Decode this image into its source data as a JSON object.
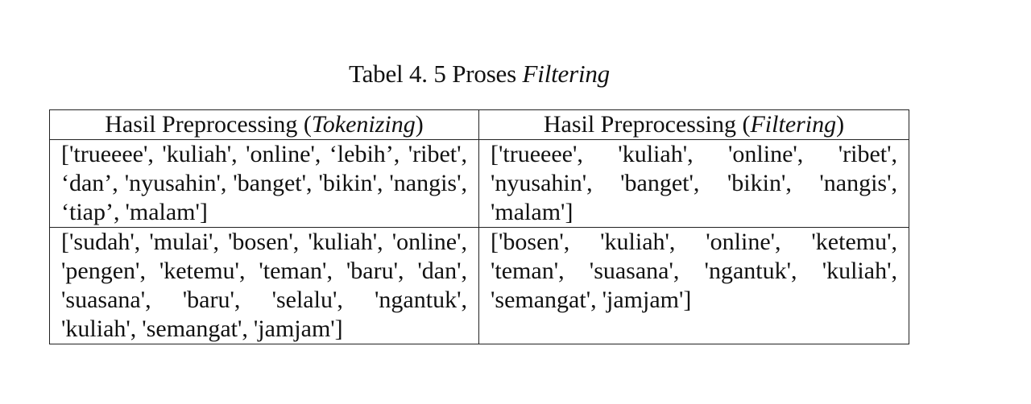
{
  "caption": {
    "prefix": "Tabel 4. 5 Proses ",
    "emphasis": "Filtering"
  },
  "table": {
    "headers": [
      {
        "prefix": "Hasil Preprocessing (",
        "emphasis": "Tokenizing",
        "suffix": ")"
      },
      {
        "prefix": "Hasil Preprocessing (",
        "emphasis": "Filtering",
        "suffix": ")"
      }
    ],
    "rows": [
      {
        "tokenizing": "['trueeee', 'kuliah', 'online', ‘lebih’, 'ribet', ‘dan’, 'nyusahin', 'banget', 'bikin', 'nangis', ‘tiap’, 'malam']",
        "filtering": "['trueeee', 'kuliah', 'online', 'ribet', 'nyusahin', 'banget', 'bikin', 'nangis', 'malam']"
      },
      {
        "tokenizing": "['sudah', 'mulai', 'bosen', 'kuliah', 'online', 'pengen', 'ketemu', 'teman', 'baru', 'dan', 'suasana', 'baru', 'selalu', 'ngantuk', 'kuliah', 'semangat', 'jamjam']",
        "filtering": "['bosen', 'kuliah', 'online', 'ketemu', 'teman', 'suasana', 'ngantuk', 'kuliah', 'semangat', 'jamjam']"
      }
    ]
  }
}
